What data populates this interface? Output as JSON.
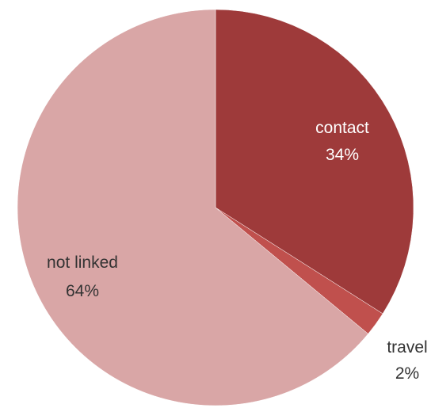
{
  "chart_data": {
    "type": "pie",
    "start_angle_deg": 0,
    "direction": "clockwise",
    "slices": [
      {
        "label": "contact",
        "percent_label": "34%",
        "value": 34,
        "color": "#9e3a3a",
        "label_color": "#ffffff"
      },
      {
        "label": "travel",
        "percent_label": "2%",
        "value": 2,
        "color": "#c0504d",
        "label_color": "#333333"
      },
      {
        "label": "not linked",
        "percent_label": "64%",
        "value": 64,
        "color": "#d9a6a6",
        "label_color": "#333333"
      }
    ]
  }
}
